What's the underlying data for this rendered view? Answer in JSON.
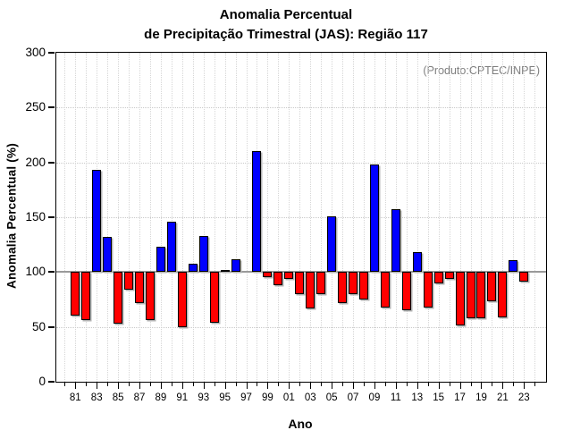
{
  "title": {
    "line1": "Anomalia Percentual",
    "line2": "de Precipitação Trimestral (JAS): Região 117"
  },
  "annotation": {
    "text": "(Produto:CPTEC/INPE)",
    "color": "#7f7f7f"
  },
  "axes": {
    "y_label": "Anomalia Percentual (%)",
    "x_label": "Ano",
    "y_tick_labels": [
      "0",
      "50",
      "100",
      "150",
      "200",
      "250",
      "300"
    ],
    "x_tick_labels": [
      "81",
      "83",
      "85",
      "87",
      "89",
      "91",
      "93",
      "95",
      "97",
      "99",
      "01",
      "03",
      "05",
      "07",
      "09",
      "11",
      "13",
      "15",
      "17",
      "19",
      "21",
      "23"
    ]
  },
  "chart_data": {
    "type": "bar",
    "title": "Anomalia Percentual de Precipitação Trimestral (JAS): Região 117",
    "xlabel": "Ano",
    "ylabel": "Anomalia Percentual (%)",
    "ylim": [
      0,
      300
    ],
    "y_ticks": [
      0,
      50,
      100,
      150,
      200,
      250,
      300
    ],
    "baseline": 100,
    "x_axis_year_range": [
      1980,
      2024
    ],
    "grid": "dotted",
    "legend_position": "none",
    "bar_color_rule": "blue above baseline 100, red below",
    "colors": {
      "above": "#0000ff",
      "below": "#ff0000",
      "baseline": "#9a9a9a"
    },
    "years": [
      1981,
      1982,
      1983,
      1984,
      1985,
      1986,
      1987,
      1988,
      1989,
      1990,
      1991,
      1992,
      1993,
      1994,
      1995,
      1996,
      1997,
      1998,
      1999,
      2000,
      2001,
      2002,
      2003,
      2004,
      2005,
      2006,
      2007,
      2008,
      2009,
      2010,
      2011,
      2012,
      2013,
      2014,
      2015,
      2016,
      2017,
      2018,
      2019,
      2020,
      2021,
      2022,
      2023
    ],
    "values": [
      60,
      56,
      193,
      132,
      53,
      84,
      72,
      56,
      123,
      146,
      50,
      108,
      133,
      54,
      102,
      112,
      100,
      210,
      95,
      88,
      94,
      80,
      67,
      80,
      151,
      72,
      80,
      75,
      198,
      68,
      157,
      65,
      118,
      68,
      90,
      94,
      51,
      58,
      58,
      73,
      59,
      111,
      91
    ]
  }
}
